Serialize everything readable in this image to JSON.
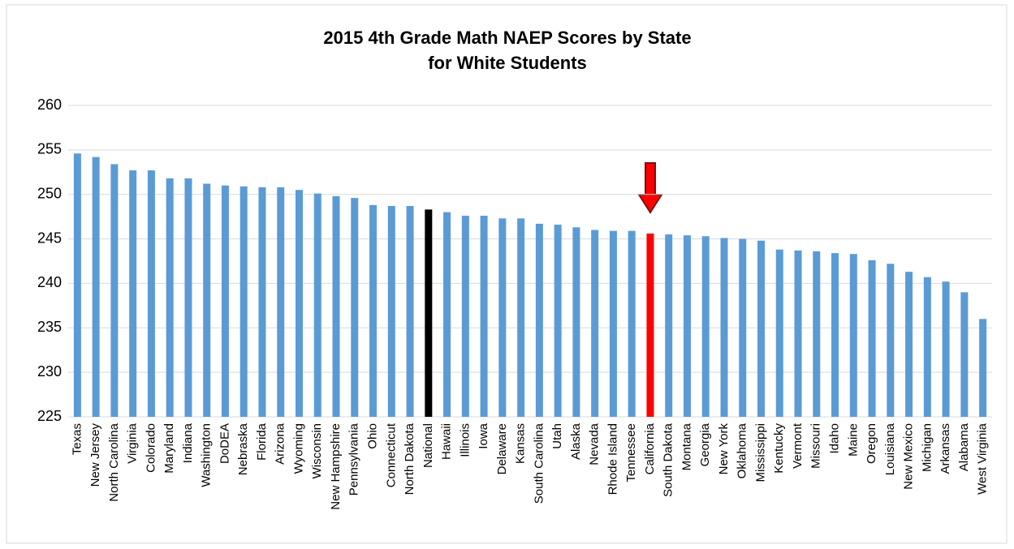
{
  "chart_data": {
    "type": "bar",
    "title": [
      "2015 4th Grade Math NAEP Scores by State",
      "for White Students"
    ],
    "categories": [
      "Texas",
      "New Jersey",
      "North Carolina",
      "Virginia",
      "Colorado",
      "Maryland",
      "Indiana",
      "Washington",
      "DoDEA",
      "Nebraska",
      "Florida",
      "Arizona",
      "Wyoming",
      "Wisconsin",
      "New Hampshire",
      "Pennsylvania",
      "Ohio",
      "Connecticut",
      "North Dakota",
      "National",
      "Hawaii",
      "Illinois",
      "Iowa",
      "Delaware",
      "Kansas",
      "South Carolina",
      "Utah",
      "Alaska",
      "Nevada",
      "Rhode Island",
      "Tennessee",
      "California",
      "South Dakota",
      "Montana",
      "Georgia",
      "New York",
      "Oklahoma",
      "Mississippi",
      "Kentucky",
      "Vermont",
      "Missouri",
      "Idaho",
      "Maine",
      "Oregon",
      "Louisiana",
      "New Mexico",
      "Michigan",
      "Arkansas",
      "Alabama",
      "West Virginia"
    ],
    "values": [
      254.6,
      254.2,
      253.4,
      252.7,
      252.7,
      251.8,
      251.8,
      251.2,
      251.0,
      250.9,
      250.8,
      250.8,
      250.5,
      250.1,
      249.8,
      249.6,
      248.8,
      248.7,
      248.7,
      248.3,
      248.0,
      247.6,
      247.6,
      247.3,
      247.3,
      246.7,
      246.6,
      246.3,
      246.0,
      245.9,
      245.9,
      245.6,
      245.5,
      245.4,
      245.3,
      245.1,
      245.0,
      244.8,
      243.8,
      243.7,
      243.6,
      243.4,
      243.3,
      242.6,
      242.2,
      241.3,
      240.7,
      240.2,
      239.0,
      236.0
    ],
    "colors": [
      "#5b9bd5",
      "#5b9bd5",
      "#5b9bd5",
      "#5b9bd5",
      "#5b9bd5",
      "#5b9bd5",
      "#5b9bd5",
      "#5b9bd5",
      "#5b9bd5",
      "#5b9bd5",
      "#5b9bd5",
      "#5b9bd5",
      "#5b9bd5",
      "#5b9bd5",
      "#5b9bd5",
      "#5b9bd5",
      "#5b9bd5",
      "#5b9bd5",
      "#5b9bd5",
      "#000000",
      "#5b9bd5",
      "#5b9bd5",
      "#5b9bd5",
      "#5b9bd5",
      "#5b9bd5",
      "#5b9bd5",
      "#5b9bd5",
      "#5b9bd5",
      "#5b9bd5",
      "#5b9bd5",
      "#5b9bd5",
      "#ff0000",
      "#5b9bd5",
      "#5b9bd5",
      "#5b9bd5",
      "#5b9bd5",
      "#5b9bd5",
      "#5b9bd5",
      "#5b9bd5",
      "#5b9bd5",
      "#5b9bd5",
      "#5b9bd5",
      "#5b9bd5",
      "#5b9bd5",
      "#5b9bd5",
      "#5b9bd5",
      "#5b9bd5",
      "#5b9bd5",
      "#5b9bd5",
      "#5b9bd5"
    ],
    "ylim": [
      225,
      260
    ],
    "yticks": [
      225,
      230,
      235,
      240,
      245,
      250,
      255,
      260
    ],
    "grid": true
  }
}
